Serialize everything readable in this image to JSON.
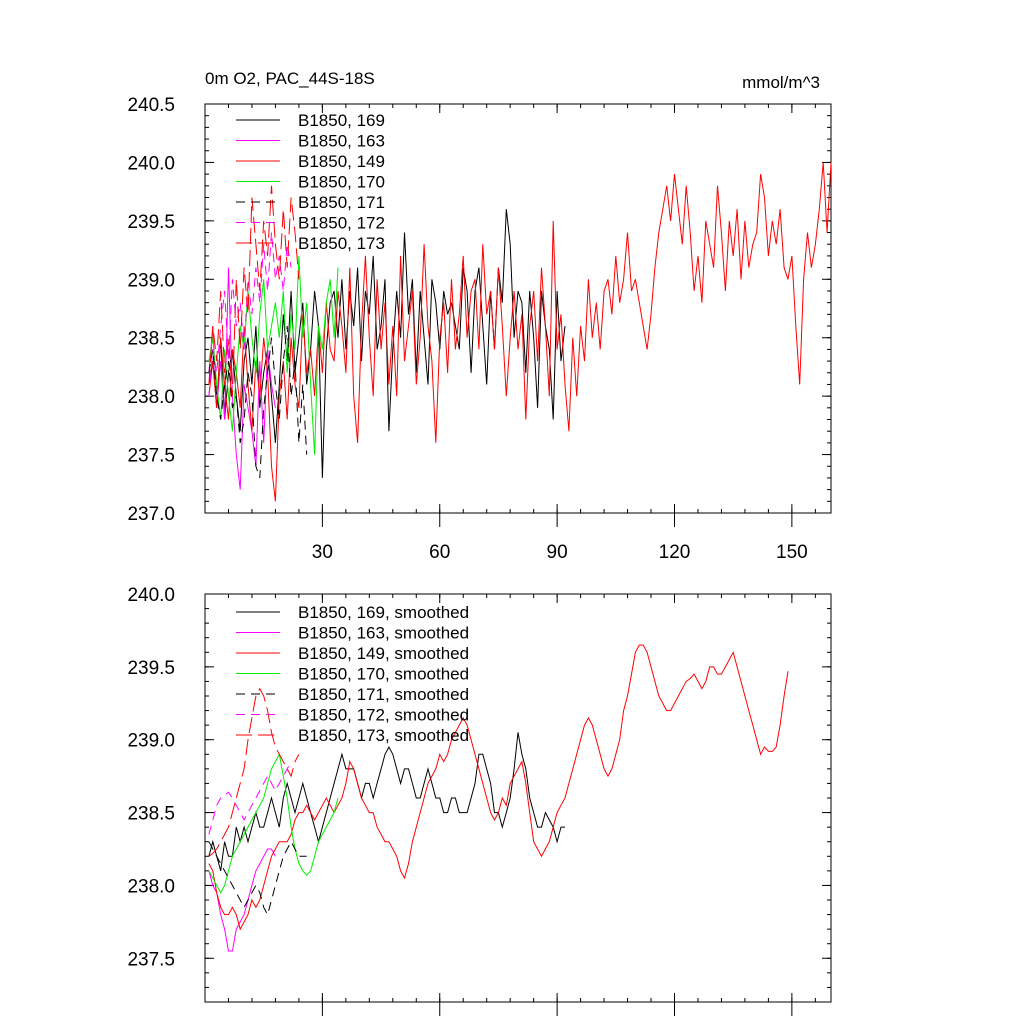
{
  "chart_data": [
    {
      "type": "line",
      "title": "0m O2, PAC_44S-18S",
      "units": "mmol/m^3",
      "xlim": [
        0,
        160
      ],
      "ylim": [
        237.0,
        240.5
      ],
      "xticks": [
        30,
        60,
        90,
        120,
        150
      ],
      "xtick_labels": [
        "30",
        "60",
        "90",
        "120",
        "150"
      ],
      "yticks": [
        237.0,
        237.5,
        238.0,
        238.5,
        239.0,
        239.5,
        240.0,
        240.5
      ],
      "ytick_labels": [
        "237.0",
        "237.5",
        "238.0",
        "238.5",
        "239.0",
        "239.5",
        "240.0",
        "240.5"
      ],
      "series": [
        {
          "name": "B1850, 169",
          "color": "#000000",
          "dash": "solid",
          "x0": 1,
          "values": [
            238.1,
            238.3,
            237.9,
            238.5,
            237.8,
            238.2,
            238.4,
            238.0,
            237.7,
            238.3,
            238.5,
            238.1,
            238.6,
            237.9,
            238.2,
            238.4,
            238.0,
            237.6,
            238.1,
            238.7,
            238.3,
            238.9,
            238.2,
            238.5,
            238.8,
            238.1,
            238.4,
            238.9,
            238.6,
            237.3,
            238.4,
            238.8,
            238.9,
            238.5,
            239.0,
            238.4,
            238.9,
            238.6,
            239.1,
            238.3,
            238.9,
            238.7,
            239.2,
            238.4,
            238.6,
            239.0,
            237.7,
            238.4,
            238.9,
            238.5,
            239.4,
            238.7,
            239.0,
            238.2,
            238.9,
            238.5,
            238.1,
            239.0,
            238.8,
            238.4,
            238.9,
            238.7,
            238.8,
            238.6,
            238.4,
            239.1,
            238.9,
            238.2,
            238.9,
            239.1,
            238.6,
            238.1,
            238.9,
            238.4,
            239.1,
            238.8,
            239.6,
            239.3,
            238.5,
            238.9,
            238.8,
            238.2,
            238.9,
            238.5,
            237.9,
            238.9,
            238.6,
            238.4,
            237.8,
            238.9,
            238.3,
            238.6
          ]
        },
        {
          "name": "B1850, 163",
          "color": "#ff00ff",
          "dash": "solid",
          "x0": 1,
          "values": [
            238.2,
            238.6,
            237.9,
            238.3,
            237.8,
            239.1,
            238.0,
            237.5,
            237.2,
            238.1,
            237.9,
            237.7,
            237.4,
            238.3,
            237.6,
            238.4,
            238.1,
            237.9
          ]
        },
        {
          "name": "B1850, 149",
          "color": "#ff0000",
          "dash": "solid",
          "x0": 1,
          "values": [
            238.0,
            238.3,
            237.9,
            238.5,
            238.1,
            237.8,
            238.4,
            238.2,
            237.9,
            238.6,
            238.1,
            237.7,
            238.3,
            238.0,
            238.5,
            238.2,
            237.4,
            237.1,
            238.0,
            238.3,
            237.8,
            238.5,
            238.1,
            237.9,
            238.7,
            238.2,
            238.4,
            238.0,
            238.6,
            238.2,
            238.8,
            238.4,
            238.3,
            238.9,
            238.6,
            238.2,
            239.1,
            238.0,
            237.6,
            238.6,
            239.2,
            238.5,
            238.0,
            239.0,
            238.4,
            238.8,
            238.1,
            238.6,
            238.0,
            239.2,
            238.3,
            238.6,
            238.9,
            238.1,
            238.5,
            239.3,
            238.6,
            238.3,
            237.6,
            238.5,
            238.8,
            238.2,
            239.0,
            238.4,
            238.7,
            239.2,
            238.5,
            238.9,
            239.0,
            238.4,
            239.3,
            238.7,
            238.9,
            238.4,
            239.1,
            238.6,
            238.0,
            238.5,
            238.9,
            238.4,
            238.7,
            237.8,
            238.6,
            238.9,
            238.3,
            239.1,
            238.6,
            238.0,
            239.5,
            238.4,
            238.7,
            238.1,
            237.7,
            238.5,
            238.0,
            238.6,
            238.3,
            239.0,
            238.5,
            238.8,
            238.4,
            238.9,
            239.0,
            238.7,
            239.2,
            238.8,
            239.0,
            239.4,
            238.9,
            239.0,
            238.8,
            238.6,
            238.4,
            238.7,
            239.1,
            239.4,
            239.6,
            239.8,
            239.5,
            239.9,
            239.6,
            239.3,
            239.8,
            239.4,
            238.9,
            239.2,
            238.8,
            239.5,
            239.3,
            239.1,
            239.8,
            239.4,
            238.9,
            239.5,
            239.2,
            239.6,
            239.0,
            239.5,
            239.1,
            239.3,
            239.4,
            239.9,
            239.7,
            239.2,
            239.5,
            239.3,
            239.6,
            239.1,
            239.0,
            239.2,
            238.6,
            238.1,
            239.0,
            239.4,
            239.1,
            239.3,
            239.6,
            240.0,
            239.4,
            240.0
          ]
        },
        {
          "name": "B1850, 170",
          "color": "#00ee00",
          "dash": "solid",
          "x0": 1,
          "values": [
            238.3,
            238.5,
            238.1,
            237.8,
            238.4,
            238.0,
            237.7,
            238.2,
            238.6,
            238.4,
            238.9,
            238.5,
            238.2,
            238.7,
            239.0,
            238.4,
            238.6,
            238.8,
            238.5,
            238.9,
            238.2,
            238.7,
            238.4,
            239.2,
            238.5,
            238.8,
            238.1,
            237.5,
            238.6,
            238.4,
            238.8,
            239.0,
            238.5,
            239.1
          ]
        },
        {
          "name": "B1850, 171",
          "color": "#000000",
          "dash": "dashed",
          "x0": 1,
          "values": [
            238.2,
            238.4,
            238.0,
            237.8,
            238.1,
            238.3,
            237.9,
            238.0,
            237.6,
            237.8,
            238.2,
            238.0,
            237.4,
            237.3,
            237.9,
            238.2,
            238.5,
            238.1,
            237.8,
            238.3,
            238.6,
            238.0,
            238.3,
            237.6,
            238.1,
            237.5
          ]
        },
        {
          "name": "B1850, 172",
          "color": "#ff00ff",
          "dash": "dashed",
          "x0": 1,
          "values": [
            238.0,
            238.4,
            238.2,
            238.6,
            238.9,
            238.3,
            239.0,
            238.6,
            238.8,
            238.4,
            239.0,
            238.7,
            239.1,
            238.8,
            239.3,
            238.9,
            239.4,
            239.0,
            239.2,
            238.9,
            239.3,
            239.1
          ]
        },
        {
          "name": "B1850, 173",
          "color": "#ff0000",
          "dash": "longdash",
          "x0": 1,
          "values": [
            238.1,
            238.6,
            238.3,
            238.9,
            238.2,
            238.5,
            238.0,
            239.0,
            238.4,
            239.1,
            238.7,
            239.7,
            239.3,
            238.9,
            239.5,
            239.2,
            239.8,
            239.3,
            239.0,
            239.6,
            239.1,
            239.7,
            239.4,
            239.0
          ]
        }
      ]
    },
    {
      "type": "line",
      "xlim": [
        0,
        160
      ],
      "ylim": [
        237.2,
        240.0
      ],
      "xticks": [
        30,
        60,
        90,
        120,
        150
      ],
      "yticks": [
        237.5,
        238.0,
        238.5,
        239.0,
        239.5,
        240.0
      ],
      "ytick_labels": [
        "237.5",
        "238.0",
        "238.5",
        "239.0",
        "239.5",
        "240.0"
      ],
      "series": [
        {
          "name": "B1850, 169, smoothed",
          "color": "#000000",
          "dash": "solid",
          "x0": 1,
          "values": [
            238.2,
            238.3,
            238.2,
            238.1,
            238.3,
            238.2,
            238.2,
            238.4,
            238.3,
            238.4,
            238.3,
            238.4,
            238.5,
            238.4,
            238.4,
            238.5,
            238.6,
            238.5,
            238.4,
            238.6,
            238.7,
            238.6,
            238.5,
            238.6,
            238.7,
            238.6,
            238.5,
            238.4,
            238.3,
            238.4,
            238.5,
            238.6,
            238.7,
            238.8,
            238.9,
            238.8,
            238.8,
            238.8,
            238.7,
            238.6,
            238.7,
            238.7,
            238.6,
            238.7,
            238.8,
            238.9,
            238.95,
            238.9,
            238.8,
            238.7,
            238.8,
            238.8,
            238.7,
            238.6,
            238.6,
            238.7,
            238.8,
            238.7,
            238.6,
            238.6,
            238.5,
            238.5,
            238.6,
            238.6,
            238.5,
            238.5,
            238.5,
            238.6,
            238.7,
            238.9,
            238.9,
            238.8,
            238.7,
            238.5,
            238.5,
            238.4,
            238.5,
            238.6,
            238.8,
            239.05,
            238.9,
            238.8,
            238.6,
            238.5,
            238.4,
            238.4,
            238.5,
            238.45,
            238.4,
            238.3,
            238.4,
            238.4
          ]
        },
        {
          "name": "B1850, 163, smoothed",
          "color": "#ff00ff",
          "dash": "solid",
          "x0": 1,
          "values": [
            238.1,
            238.0,
            237.95,
            237.8,
            237.7,
            237.55,
            237.55,
            237.7,
            237.75,
            237.8,
            237.9,
            238.0,
            238.1,
            238.15,
            238.2,
            238.25,
            238.25,
            238.2
          ]
        },
        {
          "name": "B1850, 149, smoothed",
          "color": "#ff0000",
          "dash": "solid",
          "x0": 1,
          "values": [
            238.15,
            238.1,
            237.95,
            237.85,
            237.8,
            237.8,
            237.85,
            237.8,
            237.7,
            237.75,
            237.8,
            237.9,
            237.85,
            237.9,
            238.0,
            238.1,
            238.2,
            238.25,
            238.3,
            238.3,
            238.3,
            238.35,
            238.45,
            238.5,
            238.5,
            238.55,
            238.5,
            238.45,
            238.5,
            238.55,
            238.6,
            238.55,
            238.5,
            238.55,
            238.6,
            238.7,
            238.85,
            238.8,
            238.7,
            238.6,
            238.55,
            238.5,
            238.5,
            238.4,
            238.35,
            238.3,
            238.3,
            238.25,
            238.2,
            238.1,
            238.05,
            238.15,
            238.3,
            238.4,
            238.5,
            238.6,
            238.7,
            238.75,
            238.8,
            238.9,
            238.85,
            238.9,
            239.0,
            239.05,
            239.1,
            239.15,
            239.1,
            239.0,
            238.9,
            238.8,
            238.7,
            238.6,
            238.5,
            238.45,
            238.5,
            238.6,
            238.55,
            238.7,
            238.75,
            238.8,
            238.85,
            238.7,
            238.5,
            238.3,
            238.25,
            238.2,
            238.25,
            238.3,
            238.4,
            238.5,
            238.55,
            238.6,
            238.7,
            238.8,
            238.9,
            239.0,
            239.1,
            239.15,
            239.1,
            239.0,
            238.9,
            238.8,
            238.75,
            238.8,
            238.9,
            239.0,
            239.2,
            239.3,
            239.45,
            239.6,
            239.65,
            239.65,
            239.6,
            239.5,
            239.4,
            239.3,
            239.25,
            239.2,
            239.2,
            239.25,
            239.3,
            239.35,
            239.4,
            239.42,
            239.45,
            239.4,
            239.35,
            239.4,
            239.5,
            239.5,
            239.45,
            239.45,
            239.5,
            239.55,
            239.6,
            239.5,
            239.4,
            239.3,
            239.2,
            239.1,
            239.0,
            238.9,
            238.95,
            238.92,
            238.92,
            238.95,
            239.1,
            239.3,
            239.47
          ]
        },
        {
          "name": "B1850, 170, smoothed",
          "color": "#00ee00",
          "dash": "solid",
          "x0": 1,
          "values": [
            238.1,
            238.05,
            238.0,
            237.95,
            238.0,
            238.1,
            238.2,
            238.25,
            238.3,
            238.35,
            238.4,
            238.45,
            238.5,
            238.55,
            238.6,
            238.7,
            238.8,
            238.85,
            238.9,
            238.75,
            238.6,
            238.4,
            238.25,
            238.15,
            238.1,
            238.07,
            238.1,
            238.2,
            238.3,
            238.35,
            238.4,
            238.45,
            238.5,
            238.6
          ]
        },
        {
          "name": "B1850, 171, smoothed",
          "color": "#000000",
          "dash": "dashed",
          "x0": 1,
          "values": [
            238.3,
            238.25,
            238.2,
            238.15,
            238.1,
            238.05,
            238.0,
            237.95,
            237.9,
            237.85,
            237.9,
            237.95,
            238.0,
            237.95,
            237.85,
            237.8,
            237.9,
            238.0,
            238.1,
            238.2,
            238.25,
            238.3,
            238.25,
            238.2,
            238.2,
            238.2
          ]
        },
        {
          "name": "B1850, 172, smoothed",
          "color": "#ff00ff",
          "dash": "dashed",
          "x0": 1,
          "values": [
            238.35,
            238.45,
            238.55,
            238.6,
            238.62,
            238.64,
            238.6,
            238.55,
            238.5,
            238.45,
            238.5,
            238.55,
            238.6,
            238.65,
            238.7,
            238.75,
            238.7,
            238.65,
            238.7,
            238.75,
            238.8,
            238.85
          ]
        },
        {
          "name": "B1850, 173, smoothed",
          "color": "#ff0000",
          "dash": "longdash",
          "x0": 1,
          "values": [
            238.2,
            238.22,
            238.25,
            238.3,
            238.35,
            238.4,
            238.5,
            238.6,
            238.7,
            238.8,
            239.0,
            239.15,
            239.3,
            239.35,
            239.3,
            239.2,
            239.05,
            238.95,
            238.9,
            238.85,
            238.8,
            238.75,
            238.85,
            238.9
          ]
        }
      ]
    }
  ]
}
